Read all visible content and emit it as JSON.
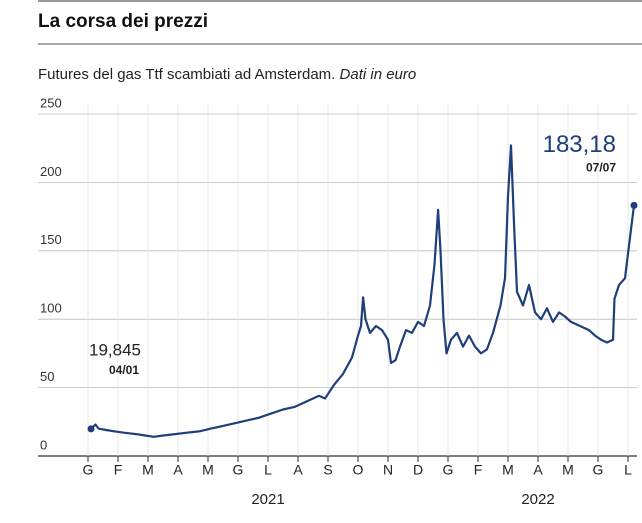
{
  "chart_data": {
    "type": "line",
    "title": "La corsa dei prezzi",
    "subtitle": "Futures del gas Ttf scambiati ad Amsterdam.",
    "subtitle_note": "Dati in euro",
    "x": [
      0.1,
      0.25,
      0.35,
      0.6,
      0.9,
      1.2,
      1.6,
      1.9,
      2.2,
      2.5,
      2.9,
      3.3,
      3.7,
      4.1,
      4.5,
      4.9,
      5.3,
      5.7,
      6.1,
      6.5,
      6.9,
      7.3,
      7.7,
      7.9,
      8.2,
      8.5,
      8.8,
      9.0,
      9.1,
      9.17,
      9.25,
      9.4,
      9.6,
      9.8,
      10.0,
      10.1,
      10.25,
      10.4,
      10.6,
      10.8,
      11.0,
      11.2,
      11.4,
      11.55,
      11.67,
      11.75,
      11.85,
      11.95,
      12.1,
      12.3,
      12.5,
      12.7,
      12.9,
      13.1,
      13.3,
      13.5,
      13.75,
      13.9,
      14.0,
      14.1,
      14.2,
      14.3,
      14.5,
      14.7,
      14.9,
      15.1,
      15.3,
      15.5,
      15.7,
      15.9,
      16.1,
      16.4,
      16.7,
      16.9,
      17.1,
      17.3,
      17.5,
      17.55,
      17.7,
      17.9,
      18.0,
      18.2
    ],
    "series": [
      {
        "name": "Ttf",
        "color": "#1f3f7a",
        "values": [
          19.845,
          23,
          20,
          19,
          18,
          17,
          16,
          15,
          14,
          15,
          16,
          17,
          18,
          20,
          22,
          24,
          26,
          28,
          31,
          34,
          36,
          40,
          44,
          42,
          52,
          60,
          72,
          88,
          95,
          116,
          100,
          90,
          95,
          92,
          85,
          68,
          70,
          80,
          92,
          90,
          98,
          95,
          110,
          140,
          180,
          150,
          100,
          75,
          85,
          90,
          80,
          88,
          80,
          75,
          78,
          90,
          110,
          130,
          190,
          227,
          170,
          120,
          110,
          125,
          105,
          100,
          108,
          98,
          105,
          102,
          98,
          95,
          92,
          88,
          85,
          83,
          85,
          115,
          125,
          130,
          148,
          183.18
        ]
      }
    ],
    "annotations": [
      {
        "value": 19.845,
        "label": "19,845",
        "date": "04/01"
      },
      {
        "value": 183.18,
        "label": "183,18",
        "date": "07/07"
      }
    ],
    "xlim": [
      -0.4,
      18.3
    ],
    "xticks": [
      {
        "value": 0,
        "label": "G"
      },
      {
        "value": 1,
        "label": "F"
      },
      {
        "value": 2,
        "label": "M"
      },
      {
        "value": 3,
        "label": "A"
      },
      {
        "value": 4,
        "label": "M"
      },
      {
        "value": 5,
        "label": "G"
      },
      {
        "value": 6,
        "label": "L"
      },
      {
        "value": 7,
        "label": "A"
      },
      {
        "value": 8,
        "label": "S"
      },
      {
        "value": 9,
        "label": "O"
      },
      {
        "value": 10,
        "label": "N"
      },
      {
        "value": 11,
        "label": "D"
      },
      {
        "value": 12,
        "label": "G"
      },
      {
        "value": 13,
        "label": "F"
      },
      {
        "value": 14,
        "label": "M"
      },
      {
        "value": 15,
        "label": "A"
      },
      {
        "value": 16,
        "label": "M"
      },
      {
        "value": 17,
        "label": "G"
      },
      {
        "value": 18,
        "label": "L"
      }
    ],
    "year_labels": [
      {
        "label": "2021",
        "from": 0,
        "to": 12
      },
      {
        "label": "2022",
        "from": 12,
        "to": 18
      }
    ],
    "ylim": [
      0,
      250
    ],
    "yticks": [
      0,
      50,
      100,
      150,
      200,
      250
    ],
    "grid": true
  }
}
